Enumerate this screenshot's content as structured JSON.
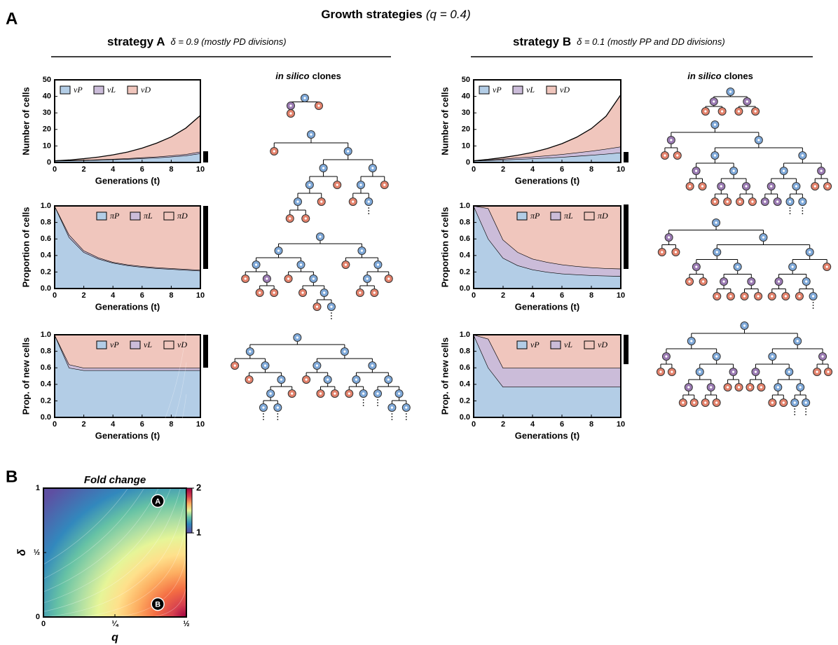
{
  "figure": {
    "panel_a": "A",
    "panel_b": "B",
    "title": "Growth strategies",
    "title_param": "(q = 0.4)",
    "strategies": [
      {
        "name": "strategy A",
        "detail": "δ = 0.9 (mostly PD divisions)",
        "clones_em": "in silico",
        "clones": "clones"
      },
      {
        "name": "strategy B",
        "detail": "δ = 0.1 (mostly PP and DD divisions)",
        "clones_em": "in silico",
        "clones": "clones"
      }
    ]
  },
  "chart_data": [
    {
      "type": "area",
      "xlabel": "Generations (t)",
      "ylabel": "Number of cells",
      "x": [
        0,
        1,
        2,
        3,
        4,
        5,
        6,
        7,
        8,
        9,
        10
      ],
      "xlim": [
        0,
        10
      ],
      "xticks": [
        0,
        2,
        4,
        6,
        8,
        10
      ],
      "ylim": [
        0,
        50
      ],
      "yticks": [
        0,
        10,
        20,
        30,
        40,
        50
      ],
      "legend": "upper left",
      "series": [
        {
          "name": "νP",
          "color": "#b3cde6",
          "values": [
            1,
            1.1,
            1.3,
            1.5,
            1.8,
            2.1,
            2.5,
            2.9,
            3.5,
            4.2,
            5.5
          ]
        },
        {
          "name": "νL",
          "color": "#cbbcd9",
          "values": [
            0,
            0.2,
            0.2,
            0.3,
            0.3,
            0.4,
            0.5,
            0.6,
            0.7,
            0.8,
            1.0
          ]
        },
        {
          "name": "νD",
          "color": "#f0c6bd",
          "values": [
            0,
            0.2,
            0.8,
            1.5,
            2.5,
            3.8,
            5.7,
            8.2,
            11.3,
            15.8,
            22
          ]
        }
      ]
    },
    {
      "type": "area",
      "xlabel": "Generations (t)",
      "ylabel": "Proportion of cells",
      "x": [
        0,
        1,
        2,
        3,
        4,
        5,
        6,
        7,
        8,
        9,
        10
      ],
      "xlim": [
        0,
        10
      ],
      "xticks": [
        0,
        2,
        4,
        6,
        8,
        10
      ],
      "ylim": [
        0,
        1
      ],
      "yticks": [
        {
          "value": 0,
          "label": "0.0"
        },
        0.2,
        0.4,
        0.6,
        0.8,
        {
          "value": 1,
          "label": "1.0"
        }
      ],
      "legend": "upper right",
      "series": [
        {
          "name": "πP",
          "color": "#b3cde6",
          "values": [
            1,
            0.62,
            0.44,
            0.36,
            0.31,
            0.28,
            0.26,
            0.245,
            0.235,
            0.225,
            0.215
          ]
        },
        {
          "name": "πL",
          "color": "#cbbcd9",
          "values": [
            0,
            0.03,
            0.02,
            0.015,
            0.01,
            0.01,
            0.01,
            0.01,
            0.01,
            0.01,
            0.01
          ]
        },
        {
          "name": "πD",
          "color": "#f0c6bd",
          "values": [
            0,
            0.35,
            0.54,
            0.625,
            0.68,
            0.71,
            0.73,
            0.745,
            0.755,
            0.765,
            0.775
          ]
        }
      ]
    },
    {
      "type": "area",
      "xlabel": "Generations (t)",
      "ylabel": "Prop. of new cells",
      "x": [
        0,
        1,
        2,
        3,
        4,
        5,
        6,
        7,
        8,
        9,
        10
      ],
      "xlim": [
        0,
        10
      ],
      "xticks": [
        0,
        2,
        4,
        6,
        8,
        10
      ],
      "ylim": [
        0,
        1
      ],
      "yticks": [
        {
          "value": 0,
          "label": "0.0"
        },
        0.2,
        0.4,
        0.6,
        0.8,
        {
          "value": 1,
          "label": "1.0"
        }
      ],
      "legend": "upper right",
      "series": [
        {
          "name": "νP",
          "color": "#b3cde6",
          "values": [
            1,
            0.6,
            0.57,
            0.57,
            0.57,
            0.57,
            0.57,
            0.57,
            0.57,
            0.57,
            0.57
          ]
        },
        {
          "name": "νL",
          "color": "#cbbcd9",
          "values": [
            0,
            0.04,
            0.03,
            0.03,
            0.03,
            0.03,
            0.03,
            0.03,
            0.03,
            0.03,
            0.03
          ]
        },
        {
          "name": "νD",
          "color": "#f0c6bd",
          "values": [
            0,
            0.36,
            0.4,
            0.4,
            0.4,
            0.4,
            0.4,
            0.4,
            0.4,
            0.4,
            0.4
          ]
        }
      ]
    },
    {
      "type": "area",
      "xlabel": "Generations (t)",
      "ylabel": "Number of cells",
      "x": [
        0,
        1,
        2,
        3,
        4,
        5,
        6,
        7,
        8,
        9,
        10
      ],
      "xlim": [
        0,
        10
      ],
      "xticks": [
        0,
        2,
        4,
        6,
        8,
        10
      ],
      "ylim": [
        0,
        50
      ],
      "yticks": [
        0,
        10,
        20,
        30,
        40,
        50
      ],
      "legend": "upper left",
      "series": [
        {
          "name": "νP",
          "color": "#b3cde6",
          "values": [
            1,
            1.3,
            1.6,
            2.0,
            2.4,
            2.8,
            3.3,
            3.9,
            4.5,
            5.2,
            6.0
          ]
        },
        {
          "name": "νL",
          "color": "#cbbcd9",
          "values": [
            0,
            0.4,
            0.6,
            0.9,
            1.1,
            1.4,
            1.7,
            2.1,
            2.5,
            3.0,
            3.6
          ]
        },
        {
          "name": "νD",
          "color": "#f0c6bd",
          "values": [
            0,
            0.2,
            0.8,
            1.5,
            2.6,
            4.2,
            6.4,
            9.3,
            13.5,
            19.8,
            31.4
          ]
        }
      ]
    },
    {
      "type": "area",
      "xlabel": "Generations (t)",
      "ylabel": "Proportion of cells",
      "x": [
        0,
        1,
        2,
        3,
        4,
        5,
        6,
        7,
        8,
        9,
        10
      ],
      "xlim": [
        0,
        10
      ],
      "xticks": [
        0,
        2,
        4,
        6,
        8,
        10
      ],
      "ylim": [
        0,
        1
      ],
      "yticks": [
        {
          "value": 0,
          "label": "0.0"
        },
        0.2,
        0.4,
        0.6,
        0.8,
        {
          "value": 1,
          "label": "1.0"
        }
      ],
      "legend": "upper right",
      "series": [
        {
          "name": "πP",
          "color": "#b3cde6",
          "values": [
            1,
            0.6,
            0.37,
            0.28,
            0.23,
            0.2,
            0.18,
            0.17,
            0.16,
            0.155,
            0.15
          ]
        },
        {
          "name": "πL",
          "color": "#cbbcd9",
          "values": [
            0,
            0.37,
            0.22,
            0.16,
            0.13,
            0.12,
            0.11,
            0.1,
            0.095,
            0.09,
            0.09
          ]
        },
        {
          "name": "πD",
          "color": "#f0c6bd",
          "values": [
            0,
            0.03,
            0.41,
            0.56,
            0.64,
            0.68,
            0.71,
            0.73,
            0.745,
            0.755,
            0.76
          ]
        }
      ]
    },
    {
      "type": "area",
      "xlabel": "Generations (t)",
      "ylabel": "Prop. of new cells",
      "x": [
        0,
        1,
        2,
        3,
        4,
        5,
        6,
        7,
        8,
        9,
        10
      ],
      "xlim": [
        0,
        10
      ],
      "xticks": [
        0,
        2,
        4,
        6,
        8,
        10
      ],
      "ylim": [
        0,
        1
      ],
      "yticks": [
        {
          "value": 0,
          "label": "0.0"
        },
        0.2,
        0.4,
        0.6,
        0.8,
        {
          "value": 1,
          "label": "1.0"
        }
      ],
      "legend": "upper right",
      "series": [
        {
          "name": "νP",
          "color": "#b3cde6",
          "values": [
            1,
            0.6,
            0.37,
            0.37,
            0.37,
            0.37,
            0.37,
            0.37,
            0.37,
            0.37,
            0.37
          ]
        },
        {
          "name": "νL",
          "color": "#cbbcd9",
          "values": [
            0,
            0.35,
            0.23,
            0.23,
            0.23,
            0.23,
            0.23,
            0.23,
            0.23,
            0.23,
            0.23
          ]
        },
        {
          "name": "νD",
          "color": "#f0c6bd",
          "values": [
            0,
            0.05,
            0.4,
            0.4,
            0.4,
            0.4,
            0.4,
            0.4,
            0.4,
            0.4,
            0.4
          ]
        }
      ]
    },
    {
      "type": "heatmap",
      "title": "Fold change",
      "xlabel": "q",
      "ylabel": "δ",
      "xlim": [
        0,
        0.5
      ],
      "ylim": [
        0,
        1
      ],
      "xticks": [
        0,
        {
          "value": 0.25,
          "label": "¼"
        },
        {
          "value": 0.5,
          "label": "½"
        }
      ],
      "yticks": [
        0,
        {
          "value": 0.5,
          "label": "½"
        },
        1
      ],
      "clim": [
        1,
        2
      ],
      "cticks": [
        1,
        2
      ],
      "points": [
        {
          "label": "A",
          "x": 0.4,
          "y": 0.9
        },
        {
          "label": "B",
          "x": 0.4,
          "y": 0.1
        }
      ]
    }
  ]
}
